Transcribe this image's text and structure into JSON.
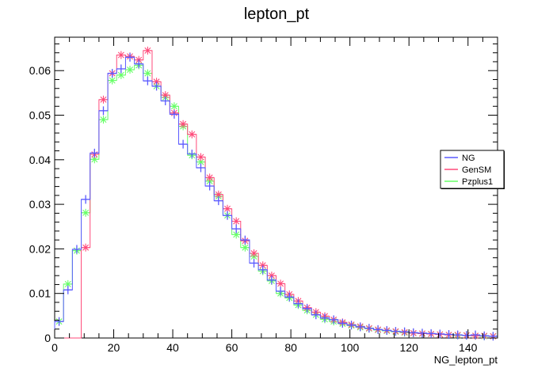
{
  "chart_data": {
    "type": "histogram",
    "title": "lepton_pt",
    "xlabel": "NG_lepton_pt",
    "ylabel": "",
    "xlim": [
      0,
      150
    ],
    "ylim": [
      0,
      0.0675
    ],
    "bin_width": 3,
    "x_ticks": [
      0,
      20,
      40,
      60,
      80,
      100,
      120,
      140
    ],
    "y_ticks": [
      0,
      0.01,
      0.02,
      0.03,
      0.04,
      0.05,
      0.06
    ],
    "y_tick_labels": [
      "0",
      "0.01",
      "0.02",
      "0.03",
      "0.04",
      "0.05",
      "0.06"
    ],
    "legend_position": "right",
    "series": [
      {
        "name": "NG",
        "color": "#5a5aff",
        "marker": "plus",
        "values": [
          0.0037,
          0.0108,
          0.0199,
          0.0311,
          0.0415,
          0.051,
          0.0594,
          0.0604,
          0.063,
          0.0615,
          0.0577,
          0.0565,
          0.0532,
          0.0502,
          0.0435,
          0.0413,
          0.0382,
          0.0341,
          0.0308,
          0.0275,
          0.0245,
          0.022,
          0.0168,
          0.0153,
          0.013,
          0.0105,
          0.0092,
          0.0077,
          0.0066,
          0.0052,
          0.0045,
          0.0041,
          0.0033,
          0.0029,
          0.0025,
          0.0022,
          0.0019,
          0.0017,
          0.0015,
          0.0014,
          0.0012,
          0.0011,
          0.001,
          0.0009,
          0.0008,
          0.0007,
          0.0006,
          0.0007,
          0.0005,
          0.0004
        ]
      },
      {
        "name": "GenSM",
        "color": "#ff4a7a",
        "marker": "star",
        "values": [
          0,
          0,
          0,
          0.0203,
          0.0412,
          0.0535,
          0.0594,
          0.0635,
          0.0632,
          0.0624,
          0.0645,
          0.0575,
          0.0545,
          0.0505,
          0.048,
          0.0457,
          0.0406,
          0.036,
          0.0322,
          0.029,
          0.0262,
          0.0218,
          0.019,
          0.0163,
          0.014,
          0.0122,
          0.0098,
          0.0083,
          0.0068,
          0.0058,
          0.0049,
          0.0041,
          0.0035,
          0.003,
          0.0026,
          0.0022,
          0.0019,
          0.0017,
          0.0015,
          0.0013,
          0.0011,
          0.001,
          0.0009,
          0.0008,
          0.0007,
          0.0007,
          0.0006,
          0.0005,
          0.0005,
          0.0004
        ]
      },
      {
        "name": "Pzplus1",
        "color": "#66ff66",
        "marker": "star",
        "values": [
          0.0037,
          0.0121,
          0.0196,
          0.0281,
          0.0401,
          0.049,
          0.0578,
          0.059,
          0.0602,
          0.0612,
          0.0594,
          0.0565,
          0.054,
          0.052,
          0.0475,
          0.041,
          0.0395,
          0.0352,
          0.0318,
          0.0275,
          0.0232,
          0.0203,
          0.0183,
          0.015,
          0.0128,
          0.01,
          0.009,
          0.0074,
          0.0062,
          0.0052,
          0.0042,
          0.0037,
          0.0032,
          0.0028,
          0.0024,
          0.0021,
          0.0018,
          0.0016,
          0.0014,
          0.0012,
          0.0011,
          0.001,
          0.0009,
          0.0008,
          0.0007,
          0.0006,
          0.0006,
          0.0005,
          0.0004,
          0.0004
        ]
      }
    ]
  }
}
